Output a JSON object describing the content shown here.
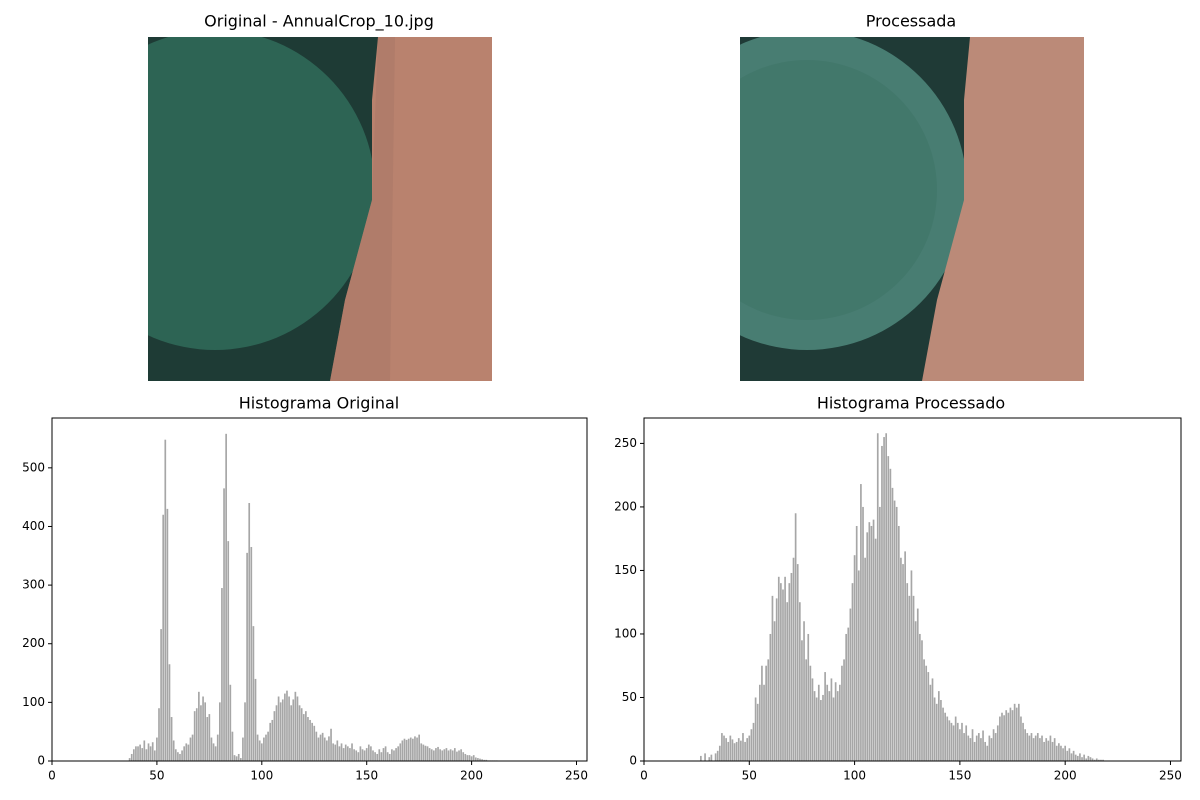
{
  "chart_data": [
    {
      "type": "image",
      "title": "Original - AnnualCrop_10.jpg"
    },
    {
      "type": "image",
      "title": "Processada"
    },
    {
      "type": "bar",
      "title": "Histograma Original",
      "color": "#a6a6a6",
      "xlim": [
        0,
        255
      ],
      "xticks": [
        0,
        50,
        100,
        150,
        200,
        250
      ],
      "ylim": [
        0,
        585
      ],
      "yticks": [
        0,
        100,
        200,
        300,
        400,
        500
      ],
      "x": [
        37,
        38,
        39,
        40,
        41,
        42,
        43,
        44,
        45,
        46,
        47,
        48,
        49,
        50,
        51,
        52,
        53,
        54,
        55,
        56,
        57,
        58,
        59,
        60,
        61,
        62,
        63,
        64,
        65,
        66,
        67,
        68,
        69,
        70,
        71,
        72,
        73,
        74,
        75,
        76,
        77,
        78,
        79,
        80,
        81,
        82,
        83,
        84,
        85,
        86,
        87,
        88,
        89,
        90,
        91,
        92,
        93,
        94,
        95,
        96,
        97,
        98,
        99,
        100,
        101,
        102,
        103,
        104,
        105,
        106,
        107,
        108,
        109,
        110,
        111,
        112,
        113,
        114,
        115,
        116,
        117,
        118,
        119,
        120,
        121,
        122,
        123,
        124,
        125,
        126,
        127,
        128,
        129,
        130,
        131,
        132,
        133,
        134,
        135,
        136,
        137,
        138,
        139,
        140,
        141,
        142,
        143,
        144,
        145,
        146,
        147,
        148,
        149,
        150,
        151,
        152,
        153,
        154,
        155,
        156,
        157,
        158,
        159,
        160,
        161,
        162,
        163,
        164,
        165,
        166,
        167,
        168,
        169,
        170,
        171,
        172,
        173,
        174,
        175,
        176,
        177,
        178,
        179,
        180,
        181,
        182,
        183,
        184,
        185,
        186,
        187,
        188,
        189,
        190,
        191,
        192,
        193,
        194,
        195,
        196,
        197,
        198,
        199,
        200,
        201,
        202,
        203,
        204,
        205,
        206,
        207,
        208,
        209,
        210,
        211,
        212
      ],
      "values": [
        5,
        12,
        20,
        25,
        25,
        28,
        22,
        35,
        20,
        30,
        25,
        32,
        18,
        40,
        90,
        225,
        420,
        548,
        430,
        165,
        75,
        35,
        20,
        15,
        12,
        18,
        25,
        30,
        28,
        40,
        45,
        85,
        90,
        118,
        95,
        110,
        100,
        75,
        80,
        40,
        30,
        25,
        45,
        100,
        295,
        465,
        558,
        375,
        130,
        50,
        10,
        8,
        12,
        5,
        40,
        100,
        355,
        440,
        365,
        230,
        140,
        45,
        35,
        30,
        40,
        45,
        50,
        65,
        70,
        85,
        95,
        110,
        100,
        105,
        115,
        120,
        110,
        95,
        105,
        118,
        110,
        95,
        90,
        80,
        85,
        75,
        70,
        65,
        60,
        50,
        40,
        45,
        48,
        40,
        35,
        42,
        55,
        30,
        28,
        35,
        25,
        30,
        22,
        28,
        25,
        22,
        30,
        20,
        18,
        15,
        25,
        20,
        18,
        22,
        28,
        25,
        18,
        15,
        12,
        20,
        15,
        22,
        25,
        15,
        12,
        20,
        18,
        22,
        25,
        30,
        35,
        38,
        36,
        38,
        40,
        38,
        42,
        40,
        45,
        30,
        28,
        26,
        25,
        22,
        20,
        18,
        22,
        24,
        20,
        18,
        20,
        22,
        18,
        20,
        18,
        22,
        16,
        18,
        20,
        15,
        12,
        10,
        10,
        8,
        10,
        6,
        5,
        4,
        3,
        2,
        2,
        1,
        1,
        1,
        1,
        1
      ]
    },
    {
      "type": "bar",
      "title": "Histograma Processado",
      "color": "#a6a6a6",
      "xlim": [
        0,
        255
      ],
      "xticks": [
        0,
        50,
        100,
        150,
        200,
        250
      ],
      "ylim": [
        0,
        270
      ],
      "yticks": [
        0,
        50,
        100,
        150,
        200,
        250
      ],
      "x": [
        27,
        28,
        29,
        30,
        31,
        32,
        33,
        34,
        35,
        36,
        37,
        38,
        39,
        40,
        41,
        42,
        43,
        44,
        45,
        46,
        47,
        48,
        49,
        50,
        51,
        52,
        53,
        54,
        55,
        56,
        57,
        58,
        59,
        60,
        61,
        62,
        63,
        64,
        65,
        66,
        67,
        68,
        69,
        70,
        71,
        72,
        73,
        74,
        75,
        76,
        77,
        78,
        79,
        80,
        81,
        82,
        83,
        84,
        85,
        86,
        87,
        88,
        89,
        90,
        91,
        92,
        93,
        94,
        95,
        96,
        97,
        98,
        99,
        100,
        101,
        102,
        103,
        104,
        105,
        106,
        107,
        108,
        109,
        110,
        111,
        112,
        113,
        114,
        115,
        116,
        117,
        118,
        119,
        120,
        121,
        122,
        123,
        124,
        125,
        126,
        127,
        128,
        129,
        130,
        131,
        132,
        133,
        134,
        135,
        136,
        137,
        138,
        139,
        140,
        141,
        142,
        143,
        144,
        145,
        146,
        147,
        148,
        149,
        150,
        151,
        152,
        153,
        154,
        155,
        156,
        157,
        158,
        159,
        160,
        161,
        162,
        163,
        164,
        165,
        166,
        167,
        168,
        169,
        170,
        171,
        172,
        173,
        174,
        175,
        176,
        177,
        178,
        179,
        180,
        181,
        182,
        183,
        184,
        185,
        186,
        187,
        188,
        189,
        190,
        191,
        192,
        193,
        194,
        195,
        196,
        197,
        198,
        199,
        200,
        201,
        202,
        203,
        204,
        205,
        206,
        207,
        208,
        209,
        210,
        211,
        212,
        213,
        214,
        215,
        216,
        217,
        218
      ],
      "values": [
        4,
        0,
        6,
        0,
        3,
        5,
        0,
        6,
        8,
        12,
        22,
        20,
        18,
        15,
        20,
        17,
        14,
        15,
        18,
        16,
        22,
        15,
        18,
        20,
        25,
        30,
        50,
        45,
        60,
        75,
        60,
        75,
        80,
        100,
        130,
        110,
        128,
        145,
        140,
        135,
        145,
        125,
        140,
        148,
        160,
        195,
        155,
        125,
        95,
        110,
        80,
        100,
        75,
        65,
        55,
        50,
        60,
        48,
        52,
        70,
        60,
        55,
        65,
        50,
        62,
        55,
        60,
        75,
        80,
        100,
        105,
        120,
        140,
        162,
        185,
        150,
        218,
        200,
        160,
        180,
        188,
        185,
        190,
        175,
        258,
        200,
        248,
        255,
        258,
        240,
        230,
        215,
        205,
        200,
        185,
        160,
        155,
        165,
        140,
        130,
        150,
        130,
        110,
        120,
        100,
        95,
        80,
        75,
        70,
        60,
        65,
        50,
        45,
        55,
        48,
        42,
        38,
        35,
        32,
        30,
        28,
        35,
        30,
        25,
        30,
        22,
        28,
        20,
        18,
        25,
        15,
        20,
        22,
        18,
        24,
        15,
        12,
        20,
        18,
        25,
        22,
        28,
        35,
        38,
        36,
        40,
        38,
        42,
        40,
        45,
        42,
        45,
        35,
        30,
        25,
        22,
        20,
        22,
        18,
        20,
        22,
        18,
        20,
        15,
        18,
        16,
        20,
        15,
        18,
        12,
        14,
        12,
        10,
        12,
        8,
        10,
        6,
        8,
        5,
        4,
        6,
        3,
        5,
        2,
        4,
        3,
        2,
        1,
        2,
        1,
        1,
        1
      ]
    }
  ]
}
